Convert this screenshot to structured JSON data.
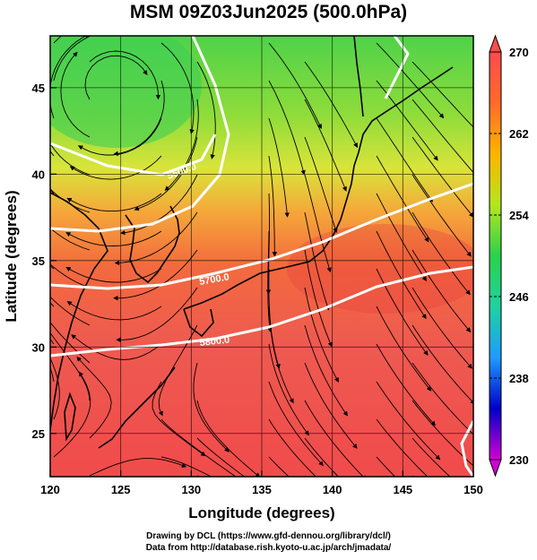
{
  "title": "MSM 09Z03Jun2025 (500.0hPa)",
  "x_axis": {
    "label": "Longitude (degrees)",
    "ticks": [
      "120",
      "125",
      "130",
      "135",
      "140",
      "145",
      "150"
    ]
  },
  "y_axis": {
    "label": "Latitude  (degrees)",
    "ticks": [
      "25",
      "30",
      "35",
      "40",
      "45"
    ]
  },
  "colorbar": {
    "ticks": [
      "230",
      "238",
      "246",
      "254",
      "262",
      "270"
    ],
    "min": 230,
    "max": 270,
    "colors": [
      "#d400d4",
      "#0000c8",
      "#1e9bff",
      "#1ed2a0",
      "#2bd24a",
      "#b4e61e",
      "#ffb400",
      "#ff6a2a",
      "#ff4b4b"
    ]
  },
  "contours": [
    {
      "label": "5700.0"
    },
    {
      "label": "5800.0"
    },
    {
      "label": "5600.0"
    }
  ],
  "credits": {
    "line1": "Drawing by DCL (https://www.gfd-dennou.org/library/dcl/)",
    "line2": "Data from http://database.rish.kyoto-u.ac.jp/arch/jmadata/"
  },
  "chart_data": {
    "type": "heatmap",
    "title": "MSM 09Z03Jun2025 (500.0hPa)",
    "xlabel": "Longitude (degrees)",
    "ylabel": "Latitude  (degrees)",
    "xlim": [
      120,
      150
    ],
    "ylim": [
      22.5,
      48
    ],
    "x_ticks": [
      120,
      125,
      130,
      135,
      140,
      145,
      150
    ],
    "y_ticks": [
      25,
      30,
      35,
      40,
      45
    ],
    "color_range": [
      230,
      270
    ],
    "contour_levels": [
      5600,
      5700,
      5800
    ],
    "vectors": "wind streamlines",
    "grid": true
  }
}
